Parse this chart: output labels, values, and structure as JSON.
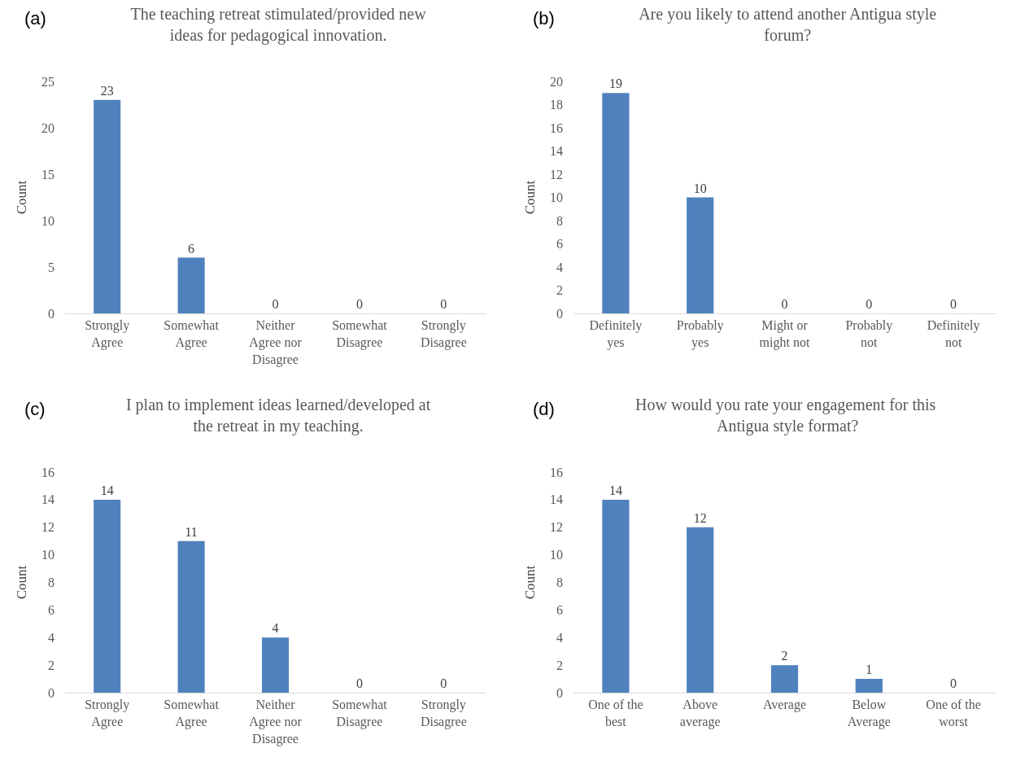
{
  "chart_data": [
    {
      "type": "bar",
      "title": "The teaching retreat stimulated/provided new ideas for pedagogical innovation.",
      "annotations": [
        "(a)"
      ],
      "ylabel": "Count",
      "categories": [
        "Strongly Agree",
        "Somewhat Agree",
        "Neither Agree nor Disagree",
        "Somewhat Disagree",
        "Strongly Disagree"
      ],
      "values": [
        23,
        6,
        0,
        0,
        0
      ],
      "color": "#4f81bd",
      "ylim": [
        0,
        25
      ],
      "yticks": [
        0,
        5,
        10,
        15,
        20,
        25
      ],
      "data_labels": true
    },
    {
      "type": "bar",
      "title": "Are you likely to attend another Antigua style forum?",
      "annotations": [
        "(b)"
      ],
      "ylabel": "Count",
      "categories": [
        "Definitely yes",
        "Probably yes",
        "Might or might not",
        "Probably not",
        "Definitely not"
      ],
      "values": [
        19,
        10,
        0,
        0,
        0
      ],
      "color": "#4f81bd",
      "ylim": [
        0,
        20
      ],
      "yticks": [
        0,
        2,
        4,
        6,
        8,
        10,
        12,
        14,
        16,
        18,
        20
      ],
      "data_labels": true
    },
    {
      "type": "bar",
      "title": "I plan to implement ideas learned/developed at the retreat in my teaching.",
      "annotations": [
        "(c)"
      ],
      "ylabel": "Count",
      "categories": [
        "Strongly Agree",
        "Somewhat Agree",
        "Neither Agree nor Disagree",
        "Somewhat Disagree",
        "Strongly Disagree"
      ],
      "values": [
        14,
        11,
        4,
        0,
        0
      ],
      "color": "#4f81bd",
      "ylim": [
        0,
        16
      ],
      "yticks": [
        0,
        2,
        4,
        6,
        8,
        10,
        12,
        14,
        16
      ],
      "data_labels": true
    },
    {
      "type": "bar",
      "title": "How would you rate your engagement for this  Antigua style format?",
      "annotations": [
        "(d)"
      ],
      "ylabel": "Count",
      "categories": [
        "One of the best",
        "Above average",
        "Average",
        "Below Average",
        "One of the worst"
      ],
      "values": [
        14,
        12,
        2,
        1,
        0
      ],
      "color": "#4f81bd",
      "ylim": [
        0,
        16
      ],
      "yticks": [
        0,
        2,
        4,
        6,
        8,
        10,
        12,
        14,
        16
      ],
      "data_labels": true
    }
  ]
}
